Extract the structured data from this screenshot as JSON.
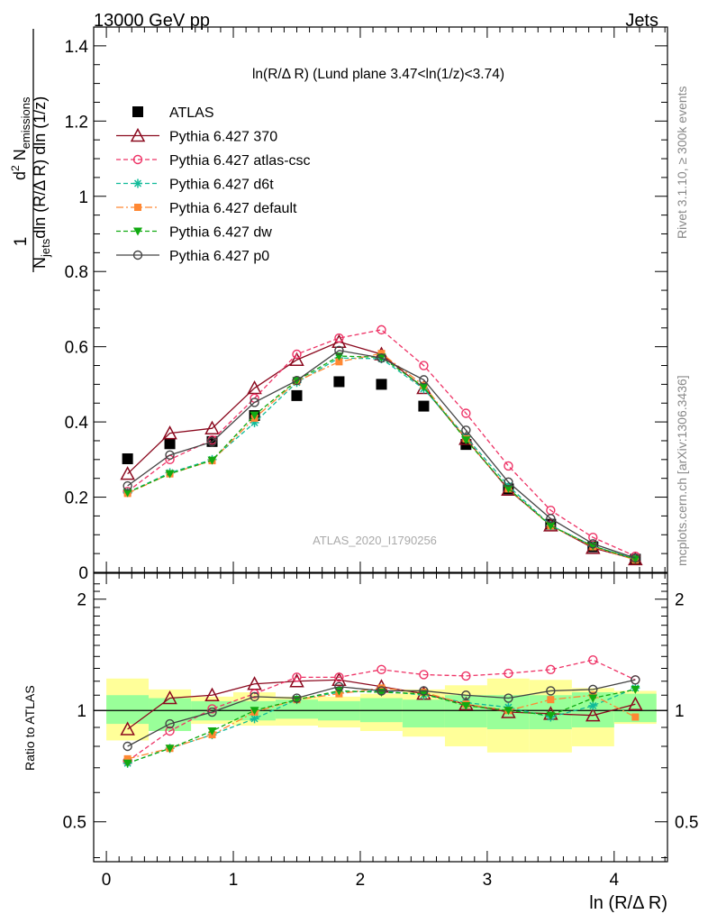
{
  "header": {
    "energy": "13000 GeV pp",
    "process": "Jets",
    "rivet": "Rivet 3.1.10, ≥ 300k events",
    "mcplots": "mcplots.cern.ch [arXiv:1306.3436]",
    "analysis": "ATLAS_2020_I1790256"
  },
  "chart_data": [
    {
      "type": "scatter",
      "title": "ln(R/Δ R) (Lund plane 3.47<ln(1/z)<3.74)",
      "ylabel": "1/N_jets d²N_emissions / dln(R/ΔR) dln(1/z)",
      "xlabel": "ln (R/Δ R)",
      "xlim": [
        -0.1,
        4.42
      ],
      "ylim": [
        0,
        1.45
      ],
      "yticks": [
        "0",
        "0.2",
        "0.4",
        "0.6",
        "0.8",
        "1",
        "1.2",
        "1.4"
      ],
      "legend_position": "top-left",
      "x": [
        0.167,
        0.5,
        0.833,
        1.167,
        1.5,
        1.833,
        2.167,
        2.5,
        2.833,
        3.167,
        3.5,
        3.833,
        4.167
      ],
      "series": [
        {
          "name": "ATLAS",
          "color": "#000000",
          "marker": "square",
          "line": "none",
          "values": [
            0.302,
            0.342,
            0.348,
            0.417,
            0.47,
            0.507,
            0.5,
            0.442,
            0.34,
            0.222,
            0.128,
            0.068,
            0.035
          ]
        },
        {
          "name": "Pythia 6.427 370",
          "color": "#8b0a1f",
          "marker": "triangle-open",
          "line": "solid",
          "values": [
            0.262,
            0.37,
            0.383,
            0.49,
            0.565,
            0.613,
            0.58,
            0.49,
            0.355,
            0.22,
            0.125,
            0.065,
            0.035
          ]
        },
        {
          "name": "Pythia 6.427 atlas-csc",
          "color": "#ee3366",
          "marker": "circle-open",
          "line": "dashed",
          "values": [
            0.215,
            0.3,
            0.352,
            0.463,
            0.58,
            0.623,
            0.645,
            0.55,
            0.423,
            0.283,
            0.165,
            0.093,
            0.043
          ]
        },
        {
          "name": "Pythia 6.427 d6t",
          "color": "#11bb99",
          "marker": "star",
          "line": "dashed",
          "values": [
            0.212,
            0.265,
            0.3,
            0.398,
            0.505,
            0.57,
            0.568,
            0.488,
            0.36,
            0.23,
            0.125,
            0.07,
            0.036
          ]
        },
        {
          "name": "Pythia 6.427 default",
          "color": "#ff8833",
          "marker": "square-small",
          "line": "dashdot",
          "values": [
            0.21,
            0.262,
            0.297,
            0.41,
            0.508,
            0.56,
            0.582,
            0.497,
            0.355,
            0.222,
            0.124,
            0.068,
            0.033
          ]
        },
        {
          "name": "Pythia 6.427 dw",
          "color": "#11aa11",
          "marker": "triangle-down",
          "line": "dashed",
          "values": [
            0.212,
            0.262,
            0.298,
            0.418,
            0.51,
            0.575,
            0.572,
            0.493,
            0.352,
            0.223,
            0.124,
            0.07,
            0.035
          ]
        },
        {
          "name": "Pythia 6.427 p0",
          "color": "#444444",
          "marker": "circle-open",
          "line": "solid",
          "values": [
            0.23,
            0.312,
            0.347,
            0.452,
            0.51,
            0.59,
            0.57,
            0.512,
            0.378,
            0.24,
            0.143,
            0.076,
            0.038
          ]
        }
      ]
    },
    {
      "type": "scatter",
      "ylabel": "Ratio to ATLAS",
      "xlabel": "ln (R/Δ R)",
      "xlim": [
        -0.1,
        4.42
      ],
      "ylim": [
        0.39,
        2.35
      ],
      "yscale": "log",
      "yticks": [
        "0.5",
        "1",
        "2"
      ],
      "xticks": [
        "0",
        "1",
        "2",
        "3",
        "4"
      ],
      "x": [
        0.167,
        0.5,
        0.833,
        1.167,
        1.5,
        1.833,
        2.167,
        2.5,
        2.833,
        3.167,
        3.5,
        3.833,
        4.167
      ],
      "band_edges": [
        0,
        0.333,
        0.667,
        1.0,
        1.333,
        1.667,
        2.0,
        2.333,
        2.667,
        3.0,
        3.333,
        3.667,
        4.0,
        4.333
      ],
      "band_inner": [
        [
          0.92,
          1.1
        ],
        [
          0.88,
          1.08
        ],
        [
          0.94,
          1.06
        ],
        [
          0.94,
          1.06
        ],
        [
          0.95,
          1.07
        ],
        [
          0.94,
          1.06
        ],
        [
          0.93,
          1.08
        ],
        [
          0.9,
          1.07
        ],
        [
          0.9,
          1.1
        ],
        [
          0.89,
          1.1
        ],
        [
          0.89,
          1.1
        ],
        [
          0.9,
          1.12
        ],
        [
          0.93,
          1.11
        ]
      ],
      "band_outer": [
        [
          0.83,
          1.22
        ],
        [
          0.88,
          1.14
        ],
        [
          0.92,
          1.09
        ],
        [
          0.91,
          1.12
        ],
        [
          0.91,
          1.09
        ],
        [
          0.9,
          1.09
        ],
        [
          0.88,
          1.11
        ],
        [
          0.85,
          1.14
        ],
        [
          0.8,
          1.17
        ],
        [
          0.77,
          1.22
        ],
        [
          0.77,
          1.21
        ],
        [
          0.8,
          1.15
        ],
        [
          0.92,
          1.13
        ]
      ],
      "series": [
        {
          "name": "Pythia 6.427 370",
          "values": [
            0.89,
            1.08,
            1.1,
            1.18,
            1.2,
            1.21,
            1.16,
            1.11,
            1.04,
            0.99,
            0.98,
            0.97,
            1.04
          ]
        },
        {
          "name": "Pythia 6.427 atlas-csc",
          "values": [
            0.73,
            0.88,
            1.01,
            1.11,
            1.23,
            1.23,
            1.29,
            1.25,
            1.24,
            1.26,
            1.29,
            1.37,
            1.21
          ]
        },
        {
          "name": "Pythia 6.427 d6t",
          "values": [
            0.72,
            0.79,
            0.86,
            0.95,
            1.07,
            1.12,
            1.13,
            1.1,
            1.05,
            1.02,
            0.96,
            1.03,
            1.15
          ]
        },
        {
          "name": "Pythia 6.427 default",
          "values": [
            0.74,
            0.79,
            0.86,
            0.99,
            1.07,
            1.11,
            1.15,
            1.12,
            1.04,
            1.0,
            1.07,
            1.1,
            0.96
          ]
        },
        {
          "name": "Pythia 6.427 dw",
          "values": [
            0.72,
            0.79,
            0.88,
            1.0,
            1.07,
            1.13,
            1.12,
            1.11,
            1.03,
            1.0,
            0.97,
            1.08,
            1.14
          ]
        },
        {
          "name": "Pythia 6.427 p0",
          "values": [
            0.8,
            0.92,
            0.99,
            1.09,
            1.08,
            1.16,
            1.13,
            1.13,
            1.1,
            1.08,
            1.13,
            1.14,
            1.21
          ]
        }
      ]
    }
  ]
}
